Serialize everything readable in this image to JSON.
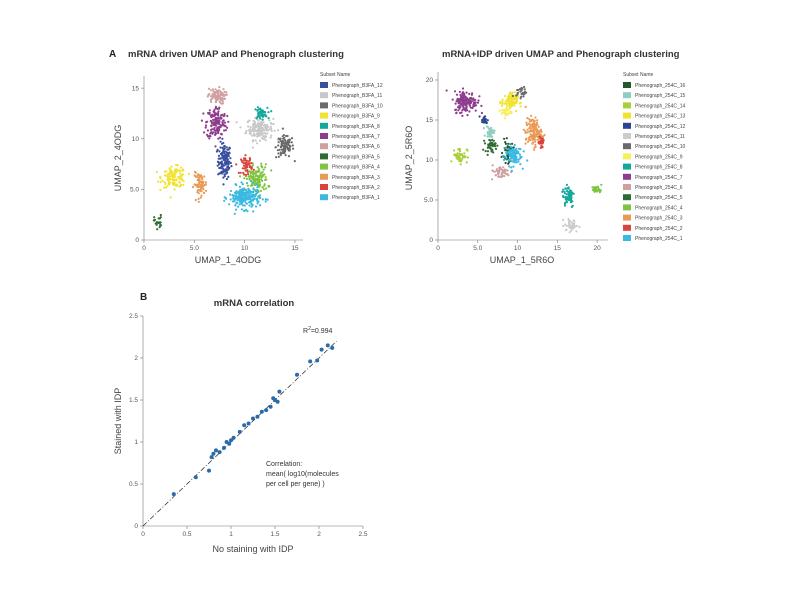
{
  "panel_letters": {
    "a": "A",
    "b": "B"
  },
  "panel_a_left": {
    "title": "mRNA driven UMAP and Phenograph clustering",
    "xlabel": "UMAP_1_4ODG",
    "ylabel": "UMAP_2_4ODG",
    "legend_title": "Subset Name"
  },
  "panel_a_right": {
    "title": "mRNA+IDP driven UMAP and Phenograph clustering",
    "xlabel": "UMAP_1_5R6O",
    "ylabel": "UMAP_2_5R6O",
    "legend_title": "Subset Name"
  },
  "panel_b": {
    "title": "mRNA correlation",
    "xlabel": "No staining with IDP",
    "ylabel": "Stained with IDP",
    "r2_label": "R",
    "r2_sup": "2",
    "r2_value": "=0.994",
    "annotation_lines": [
      "Correlation:",
      "mean( log10(molecules",
      "per cell per gene) )"
    ]
  },
  "chart_data": [
    {
      "type": "scatter",
      "title": "mRNA driven UMAP and Phenograph clustering",
      "xlabel": "UMAP_1_4ODG",
      "ylabel": "UMAP_2_4ODG",
      "xlim": [
        0,
        16
      ],
      "ylim": [
        0,
        16
      ],
      "xticks": [
        0,
        5,
        10,
        15
      ],
      "xtick_labels": [
        "0",
        "5.0",
        "10",
        "15"
      ],
      "yticks": [
        0,
        5,
        10,
        15
      ],
      "ytick_labels": [
        "0",
        "5.0",
        "10",
        "15"
      ],
      "legend_position": "right",
      "series": [
        {
          "name": "Phenograph_B3FA_12",
          "color": "#3a4fa0",
          "cx": 8.0,
          "cy": 7.8,
          "sx": 0.6,
          "sy": 1.6,
          "n": 140
        },
        {
          "name": "Phenograph_B3FA_11",
          "color": "#c8c8c8",
          "cx": 11.5,
          "cy": 11.0,
          "sx": 1.2,
          "sy": 1.0,
          "n": 170
        },
        {
          "name": "Phenograph_B3FA_10",
          "color": "#6b6b6b",
          "cx": 14.0,
          "cy": 9.2,
          "sx": 0.8,
          "sy": 1.0,
          "n": 100
        },
        {
          "name": "Phenograph_B3FA_9",
          "color": "#f1e331",
          "cx": 3.0,
          "cy": 6.2,
          "sx": 1.1,
          "sy": 0.9,
          "n": 120
        },
        {
          "name": "Phenograph_B3FA_8",
          "color": "#12a89a",
          "cx": 11.6,
          "cy": 12.5,
          "sx": 0.6,
          "sy": 0.5,
          "n": 50
        },
        {
          "name": "Phenograph_B3FA_7",
          "color": "#8e3c8e",
          "cx": 7.2,
          "cy": 11.6,
          "sx": 0.9,
          "sy": 1.5,
          "n": 160
        },
        {
          "name": "Phenograph_B3FA_6",
          "color": "#cfa0a0",
          "cx": 7.2,
          "cy": 14.2,
          "sx": 0.8,
          "sy": 0.7,
          "n": 80
        },
        {
          "name": "Phenograph_B3FA_5",
          "color": "#2f6b35",
          "cx": 1.4,
          "cy": 1.8,
          "sx": 0.35,
          "sy": 0.6,
          "n": 25
        },
        {
          "name": "Phenograph_B3FA_4",
          "color": "#7ec440",
          "cx": 11.2,
          "cy": 6.0,
          "sx": 1.0,
          "sy": 1.3,
          "n": 140
        },
        {
          "name": "Phenograph_B3FA_3",
          "color": "#e99a55",
          "cx": 5.6,
          "cy": 5.5,
          "sx": 0.6,
          "sy": 1.0,
          "n": 80
        },
        {
          "name": "Phenograph_B3FA_2",
          "color": "#d8443a",
          "cx": 10.2,
          "cy": 7.4,
          "sx": 0.5,
          "sy": 0.8,
          "n": 50
        },
        {
          "name": "Phenograph_B3FA_1",
          "color": "#3bb9e3",
          "cx": 10.0,
          "cy": 4.2,
          "sx": 1.4,
          "sy": 1.0,
          "n": 230
        }
      ]
    },
    {
      "type": "scatter",
      "title": "mRNA+IDP driven UMAP and Phenograph clustering",
      "xlabel": "UMAP_1_5R6O",
      "ylabel": "UMAP_2_5R6O",
      "xlim": [
        0,
        22
      ],
      "ylim": [
        0,
        21
      ],
      "xticks": [
        0,
        5,
        10,
        15,
        20
      ],
      "xtick_labels": [
        "0",
        "5.0",
        "10",
        "15",
        "20"
      ],
      "yticks": [
        0,
        5,
        10,
        15,
        20
      ],
      "ytick_labels": [
        "0",
        "5.0",
        "10",
        "15",
        "20"
      ],
      "legend_position": "right",
      "series": [
        {
          "name": "Phenograph_254C_16",
          "color": "#215a2f",
          "cx": 8.8,
          "cy": 11.0,
          "sx": 0.6,
          "sy": 1.2,
          "n": 50
        },
        {
          "name": "Phenograph_254C_15",
          "color": "#8fcfc0",
          "cx": 6.6,
          "cy": 13.5,
          "sx": 0.5,
          "sy": 0.7,
          "n": 35
        },
        {
          "name": "Phenograph_254C_14",
          "color": "#a9cf3a",
          "cx": 2.8,
          "cy": 10.6,
          "sx": 0.8,
          "sy": 0.9,
          "n": 50
        },
        {
          "name": "Phenograph_254C_13",
          "color": "#f1e331",
          "cx": 9.0,
          "cy": 17.3,
          "sx": 0.9,
          "sy": 1.0,
          "n": 90
        },
        {
          "name": "Phenograph_254C_12",
          "color": "#2d4591",
          "cx": 5.8,
          "cy": 15.0,
          "sx": 0.4,
          "sy": 0.5,
          "n": 20
        },
        {
          "name": "Phenograph_254C_11",
          "color": "#cccccc",
          "cx": 16.8,
          "cy": 1.8,
          "sx": 0.8,
          "sy": 0.7,
          "n": 40
        },
        {
          "name": "Phenograph_254C_10",
          "color": "#6a6a6a",
          "cx": 10.5,
          "cy": 18.5,
          "sx": 0.6,
          "sy": 0.6,
          "n": 30
        },
        {
          "name": "Phenograph_254C_9",
          "color": "#f6ee5c",
          "cx": 8.6,
          "cy": 16.0,
          "sx": 0.6,
          "sy": 0.6,
          "n": 30
        },
        {
          "name": "Phenograph_254C_8",
          "color": "#12a89a",
          "cx": 16.4,
          "cy": 5.6,
          "sx": 0.7,
          "sy": 1.4,
          "n": 60
        },
        {
          "name": "Phenograph_254C_7",
          "color": "#8e3c8e",
          "cx": 3.5,
          "cy": 17.3,
          "sx": 1.3,
          "sy": 1.2,
          "n": 150
        },
        {
          "name": "Phenograph_254C_6",
          "color": "#cfa0a0",
          "cx": 7.8,
          "cy": 8.5,
          "sx": 1.2,
          "sy": 0.7,
          "n": 50
        },
        {
          "name": "Phenograph_254C_5",
          "color": "#2f6b35",
          "cx": 6.6,
          "cy": 11.8,
          "sx": 0.6,
          "sy": 0.7,
          "n": 40
        },
        {
          "name": "Phenograph_254C_4",
          "color": "#7ec440",
          "cx": 20.0,
          "cy": 6.3,
          "sx": 0.6,
          "sy": 0.4,
          "n": 30
        },
        {
          "name": "Phenograph_254C_3",
          "color": "#e99a55",
          "cx": 12.0,
          "cy": 13.5,
          "sx": 0.9,
          "sy": 1.6,
          "n": 130
        },
        {
          "name": "Phenograph_254C_2",
          "color": "#d8443a",
          "cx": 13.0,
          "cy": 12.2,
          "sx": 0.3,
          "sy": 1.0,
          "n": 30
        },
        {
          "name": "Phenograph_254C_1",
          "color": "#3bb9e3",
          "cx": 9.4,
          "cy": 10.6,
          "sx": 1.0,
          "sy": 1.2,
          "n": 100
        }
      ]
    },
    {
      "type": "scatter",
      "title": "mRNA correlation",
      "xlabel": "No staining with IDP",
      "ylabel": "Stained with IDP",
      "xlim": [
        0,
        2.5
      ],
      "ylim": [
        0,
        2.5
      ],
      "xticks": [
        0,
        0.5,
        1,
        1.5,
        2,
        2.5
      ],
      "xtick_labels": [
        "0",
        "0.5",
        "1",
        "1.5",
        "2",
        "2.5"
      ],
      "yticks": [
        0,
        0.5,
        1,
        1.5,
        2,
        2.5
      ],
      "ytick_labels": [
        "0",
        "0.5",
        "1",
        "1.5",
        "2",
        "2.5"
      ],
      "r_squared": 0.994,
      "marker_color": "#2a6ba8",
      "trendline": {
        "from": [
          0,
          0
        ],
        "to": [
          2.2,
          2.2
        ],
        "style": "dash-dot"
      },
      "points": [
        [
          0.35,
          0.38
        ],
        [
          0.6,
          0.58
        ],
        [
          0.75,
          0.66
        ],
        [
          0.78,
          0.82
        ],
        [
          0.8,
          0.86
        ],
        [
          0.83,
          0.9
        ],
        [
          0.87,
          0.88
        ],
        [
          0.92,
          0.93
        ],
        [
          0.95,
          1.0
        ],
        [
          1.0,
          1.02
        ],
        [
          0.98,
          0.98
        ],
        [
          1.03,
          1.05
        ],
        [
          1.1,
          1.12
        ],
        [
          1.15,
          1.2
        ],
        [
          1.2,
          1.22
        ],
        [
          1.25,
          1.28
        ],
        [
          1.3,
          1.3
        ],
        [
          1.35,
          1.36
        ],
        [
          1.4,
          1.38
        ],
        [
          1.45,
          1.42
        ],
        [
          1.5,
          1.5
        ],
        [
          1.48,
          1.52
        ],
        [
          1.53,
          1.48
        ],
        [
          1.55,
          1.6
        ],
        [
          1.75,
          1.8
        ],
        [
          1.9,
          1.96
        ],
        [
          1.98,
          1.97
        ],
        [
          2.03,
          2.1
        ],
        [
          2.1,
          2.15
        ],
        [
          2.15,
          2.12
        ]
      ]
    }
  ]
}
